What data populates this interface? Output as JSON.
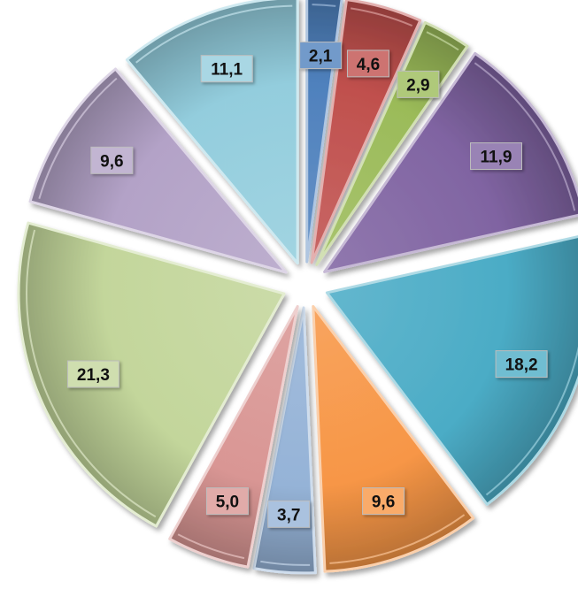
{
  "chart_data": {
    "type": "pie",
    "title": "",
    "style": "exploded-3d-bevel",
    "slices": [
      {
        "label": "2,1",
        "value": 2.1,
        "color": "#4f81bd"
      },
      {
        "label": "4,6",
        "value": 4.6,
        "color": "#c0504d"
      },
      {
        "label": "2,9",
        "value": 2.9,
        "color": "#9bbb59"
      },
      {
        "label": "11,9",
        "value": 11.9,
        "color": "#8064a2"
      },
      {
        "label": "18,2",
        "value": 18.2,
        "color": "#4bacc6"
      },
      {
        "label": "9,6",
        "value": 9.6,
        "color": "#f79646"
      },
      {
        "label": "3,7",
        "value": 3.7,
        "color": "#95b3d7"
      },
      {
        "label": "5,0",
        "value": 5.0,
        "color": "#d99694"
      },
      {
        "label": "21,3",
        "value": 21.3,
        "color": "#c3d69b"
      },
      {
        "label": "9,6",
        "value": 9.6,
        "color": "#b3a2c7"
      },
      {
        "label": "11,1",
        "value": 11.1,
        "color": "#93cddd"
      }
    ]
  }
}
